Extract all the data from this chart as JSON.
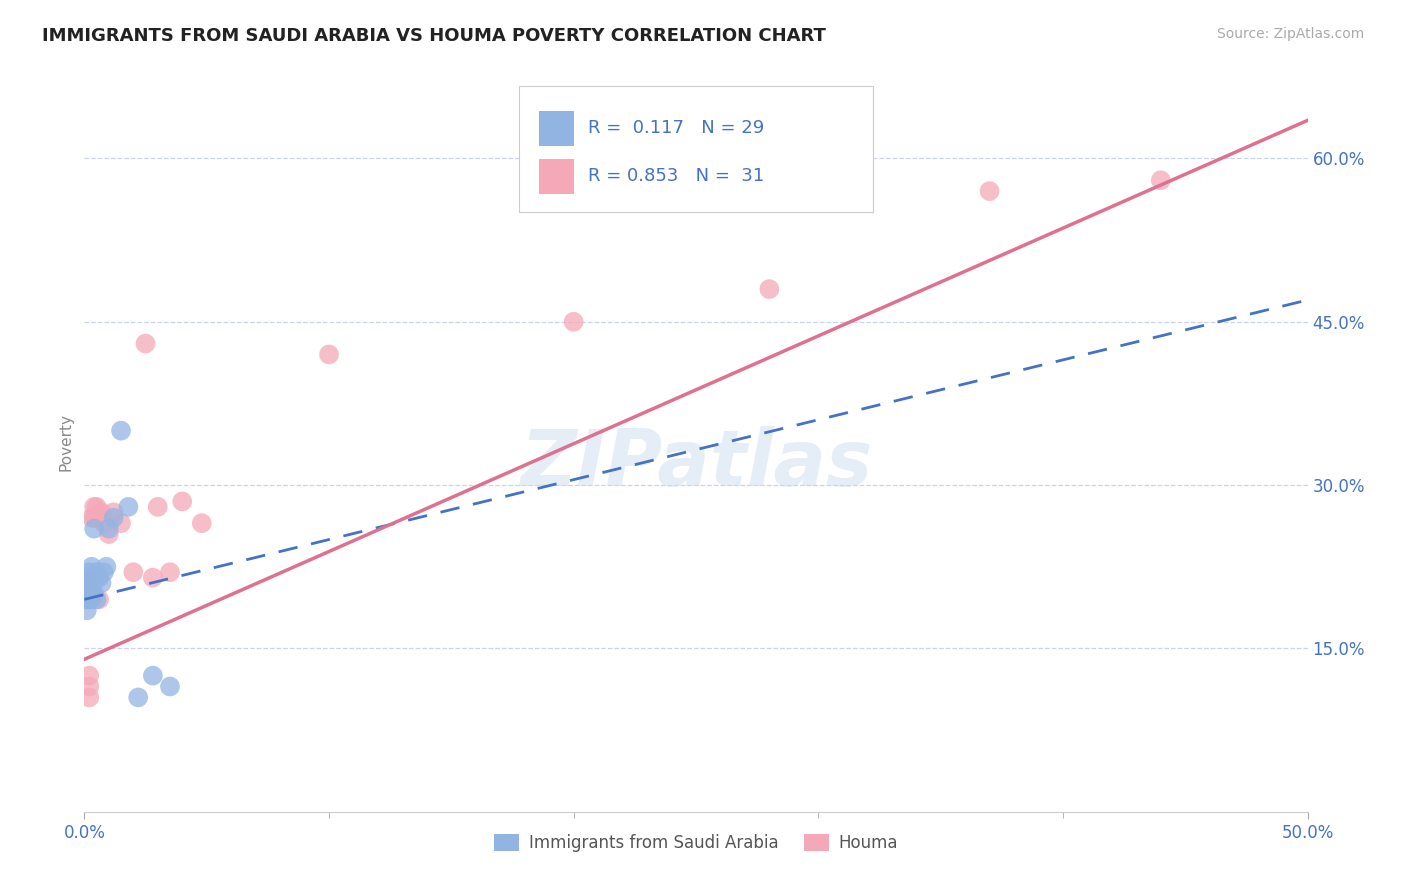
{
  "title": "IMMIGRANTS FROM SAUDI ARABIA VS HOUMA POVERTY CORRELATION CHART",
  "source": "Source: ZipAtlas.com",
  "ylabel": "Poverty",
  "yticks": [
    0.15,
    0.3,
    0.45,
    0.6
  ],
  "ytick_labels": [
    "15.0%",
    "30.0%",
    "45.0%",
    "60.0%"
  ],
  "xtick_left": "0.0%",
  "xtick_right": "50.0%",
  "legend_label1": "Immigrants from Saudi Arabia",
  "legend_label2": "Houma",
  "R1": "0.117",
  "N1": "29",
  "R2": "0.853",
  "N2": "31",
  "blue_color": "#92b4e3",
  "pink_color": "#f4a8b8",
  "blue_line_color": "#4472c4",
  "pink_line_color": "#e07090",
  "text_color": "#4472c4",
  "grid_color": "#c8d4e8",
  "background_color": "#ffffff",
  "xlim": [
    0.0,
    0.5
  ],
  "ylim": [
    0.0,
    0.68
  ],
  "blue_line_x0": 0.0,
  "blue_line_y0": 0.195,
  "blue_line_x1": 0.5,
  "blue_line_y1": 0.47,
  "pink_line_x0": 0.0,
  "pink_line_y0": 0.14,
  "pink_line_x1": 0.5,
  "pink_line_y1": 0.635,
  "blue_dots_x": [
    0.001,
    0.001,
    0.001,
    0.002,
    0.002,
    0.002,
    0.002,
    0.003,
    0.003,
    0.003,
    0.003,
    0.003,
    0.004,
    0.004,
    0.004,
    0.005,
    0.005,
    0.005,
    0.006,
    0.007,
    0.008,
    0.009,
    0.01,
    0.012,
    0.015,
    0.018,
    0.022,
    0.028,
    0.035
  ],
  "blue_dots_y": [
    0.185,
    0.195,
    0.205,
    0.195,
    0.2,
    0.21,
    0.22,
    0.195,
    0.2,
    0.205,
    0.215,
    0.225,
    0.2,
    0.215,
    0.26,
    0.195,
    0.215,
    0.22,
    0.215,
    0.21,
    0.22,
    0.225,
    0.26,
    0.27,
    0.35,
    0.28,
    0.105,
    0.125,
    0.115
  ],
  "pink_dots_x": [
    0.001,
    0.001,
    0.001,
    0.002,
    0.002,
    0.002,
    0.003,
    0.003,
    0.003,
    0.004,
    0.004,
    0.005,
    0.005,
    0.006,
    0.007,
    0.008,
    0.01,
    0.012,
    0.015,
    0.02,
    0.025,
    0.028,
    0.03,
    0.035,
    0.04,
    0.048,
    0.1,
    0.2,
    0.28,
    0.37,
    0.44
  ],
  "pink_dots_y": [
    0.195,
    0.2,
    0.215,
    0.105,
    0.115,
    0.125,
    0.2,
    0.215,
    0.27,
    0.27,
    0.28,
    0.27,
    0.28,
    0.195,
    0.275,
    0.265,
    0.255,
    0.275,
    0.265,
    0.22,
    0.43,
    0.215,
    0.28,
    0.22,
    0.285,
    0.265,
    0.42,
    0.45,
    0.48,
    0.57,
    0.58
  ],
  "watermark": "ZIPatlas"
}
